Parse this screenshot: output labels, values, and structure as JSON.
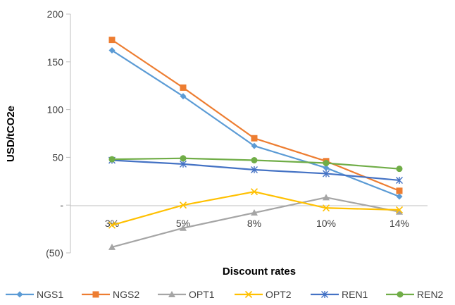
{
  "chart_data": {
    "type": "line",
    "title": "",
    "xlabel": "Discount rates",
    "ylabel": "USD/tCO2e",
    "categories": [
      "3%",
      "5%",
      "8%",
      "10%",
      "14%"
    ],
    "ylim": [
      -50,
      200
    ],
    "yticks": [
      200,
      150,
      100,
      50,
      0,
      -50
    ],
    "ytick_labels": [
      "200",
      "150",
      "100",
      "50",
      "-",
      "(50)"
    ],
    "grid": false,
    "legend_position": "bottom",
    "series": [
      {
        "name": "NGS1",
        "color": "#5B9BD5",
        "marker": "diamond",
        "values": [
          162,
          114,
          62,
          39,
          9
        ]
      },
      {
        "name": "NGS2",
        "color": "#ED7D31",
        "marker": "square",
        "values": [
          173,
          123,
          70,
          46,
          15
        ]
      },
      {
        "name": "OPT1",
        "color": "#A5A5A5",
        "marker": "triangle",
        "values": [
          -44,
          -24,
          -8,
          8,
          -7
        ]
      },
      {
        "name": "OPT2",
        "color": "#FFC000",
        "marker": "x",
        "values": [
          -21,
          0,
          14,
          -3,
          -5
        ]
      },
      {
        "name": "REN1",
        "color": "#4472C4",
        "marker": "star",
        "values": [
          47,
          43,
          37,
          33,
          26
        ]
      },
      {
        "name": "REN2",
        "color": "#70AD47",
        "marker": "circle",
        "values": [
          48,
          49,
          47,
          44,
          38
        ]
      }
    ]
  }
}
